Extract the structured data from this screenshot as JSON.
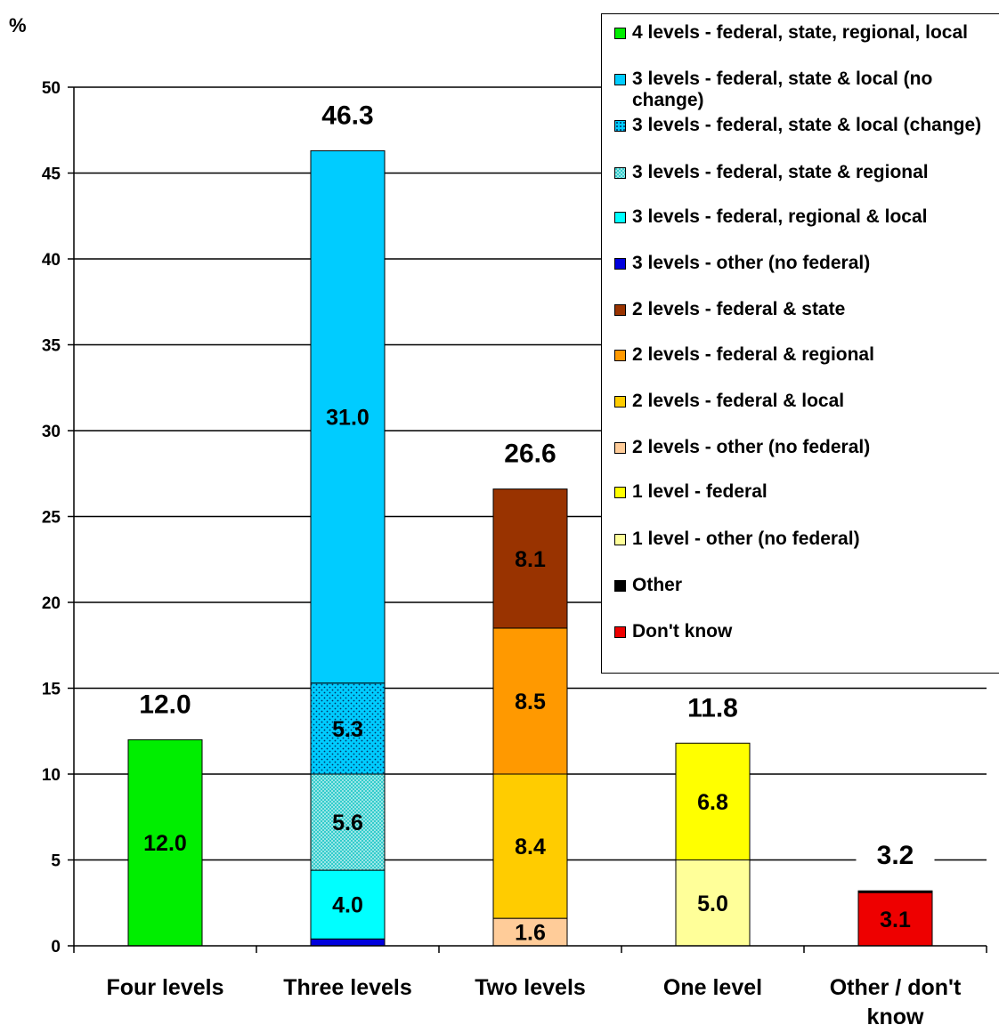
{
  "chart_data": {
    "type": "bar",
    "stacked": true,
    "ylabel": "%",
    "ylim": [
      0,
      50
    ],
    "yticks": [
      0,
      5,
      10,
      15,
      20,
      25,
      30,
      35,
      40,
      45,
      50
    ],
    "grid": true,
    "legend_position": "top-right",
    "categories": [
      "Four levels",
      "Three levels",
      "Two levels",
      "One level",
      "Other / don't know"
    ],
    "totals": [
      12.0,
      46.3,
      26.6,
      11.8,
      3.2
    ],
    "total_labels": [
      "12.0",
      "46.3",
      "26.6",
      "11.8",
      "3.2"
    ],
    "series": [
      {
        "name": "4 levels - federal, state, regional, local",
        "color": "#00EE00",
        "pattern": "none",
        "values": [
          12.0,
          0,
          0,
          0,
          0
        ],
        "labels": [
          "12.0",
          "",
          "",
          "",
          ""
        ]
      },
      {
        "name": "3 levels - federal, state & local (no change)",
        "color": "#00CCFF",
        "pattern": "none",
        "values": [
          0,
          31.0,
          0,
          0,
          0
        ],
        "labels": [
          "",
          "31.0",
          "",
          "",
          ""
        ]
      },
      {
        "name": "3 levels - federal, state & local (change)",
        "color": "#00CCFF",
        "pattern": "dots",
        "values": [
          0,
          5.3,
          0,
          0,
          0
        ],
        "labels": [
          "",
          "5.3",
          "",
          "",
          ""
        ]
      },
      {
        "name": "3 levels - federal, state & regional",
        "color": "#33CCCC",
        "pattern": "checker",
        "values": [
          0,
          5.6,
          0,
          0,
          0
        ],
        "labels": [
          "",
          "5.6",
          "",
          "",
          ""
        ]
      },
      {
        "name": "3 levels - federal, regional & local",
        "color": "#00FFFF",
        "pattern": "none",
        "values": [
          0,
          4.0,
          0,
          0,
          0
        ],
        "labels": [
          "",
          "4.0",
          "",
          "",
          ""
        ]
      },
      {
        "name": "3 levels - other (no federal)",
        "color": "#0000DD",
        "pattern": "none",
        "values": [
          0,
          0.4,
          0,
          0,
          0
        ],
        "labels": [
          "",
          "",
          "",
          "",
          ""
        ]
      },
      {
        "name": "2 levels - federal & state",
        "color": "#993300",
        "pattern": "none",
        "values": [
          0,
          0,
          8.1,
          0,
          0
        ],
        "labels": [
          "",
          "",
          "8.1",
          "",
          ""
        ]
      },
      {
        "name": "2 levels - federal & regional",
        "color": "#FF9900",
        "pattern": "none",
        "values": [
          0,
          0,
          8.5,
          0,
          0
        ],
        "labels": [
          "",
          "",
          "8.5",
          "",
          ""
        ]
      },
      {
        "name": "2 levels - federal & local",
        "color": "#FFCC00",
        "pattern": "none",
        "values": [
          0,
          0,
          8.4,
          0,
          0
        ],
        "labels": [
          "",
          "",
          "8.4",
          "",
          ""
        ]
      },
      {
        "name": "2 levels - other (no federal)",
        "color": "#FFCC99",
        "pattern": "none",
        "values": [
          0,
          0,
          1.6,
          0,
          0
        ],
        "labels": [
          "",
          "",
          "1.6",
          "",
          ""
        ]
      },
      {
        "name": "1 level - federal",
        "color": "#FFFF00",
        "pattern": "none",
        "values": [
          0,
          0,
          0,
          6.8,
          0
        ],
        "labels": [
          "",
          "",
          "",
          "6.8",
          ""
        ]
      },
      {
        "name": "1 level - other (no federal)",
        "color": "#FFFF99",
        "pattern": "none",
        "values": [
          0,
          0,
          0,
          5.0,
          0
        ],
        "labels": [
          "",
          "",
          "",
          "5.0",
          ""
        ]
      },
      {
        "name": "Other",
        "color": "#000000",
        "pattern": "none",
        "values": [
          0,
          0,
          0,
          0,
          0.1
        ],
        "labels": [
          "",
          "",
          "",
          "",
          ""
        ]
      },
      {
        "name": "Don't know",
        "color": "#EE0000",
        "pattern": "none",
        "values": [
          0,
          0,
          0,
          0,
          3.1
        ],
        "labels": [
          "",
          "",
          "",
          "",
          "3.1"
        ]
      }
    ],
    "stack_order": [
      [
        0
      ],
      [
        5,
        4,
        3,
        2,
        1
      ],
      [
        9,
        8,
        7,
        6
      ],
      [
        11,
        10
      ],
      [
        13,
        12
      ]
    ]
  }
}
